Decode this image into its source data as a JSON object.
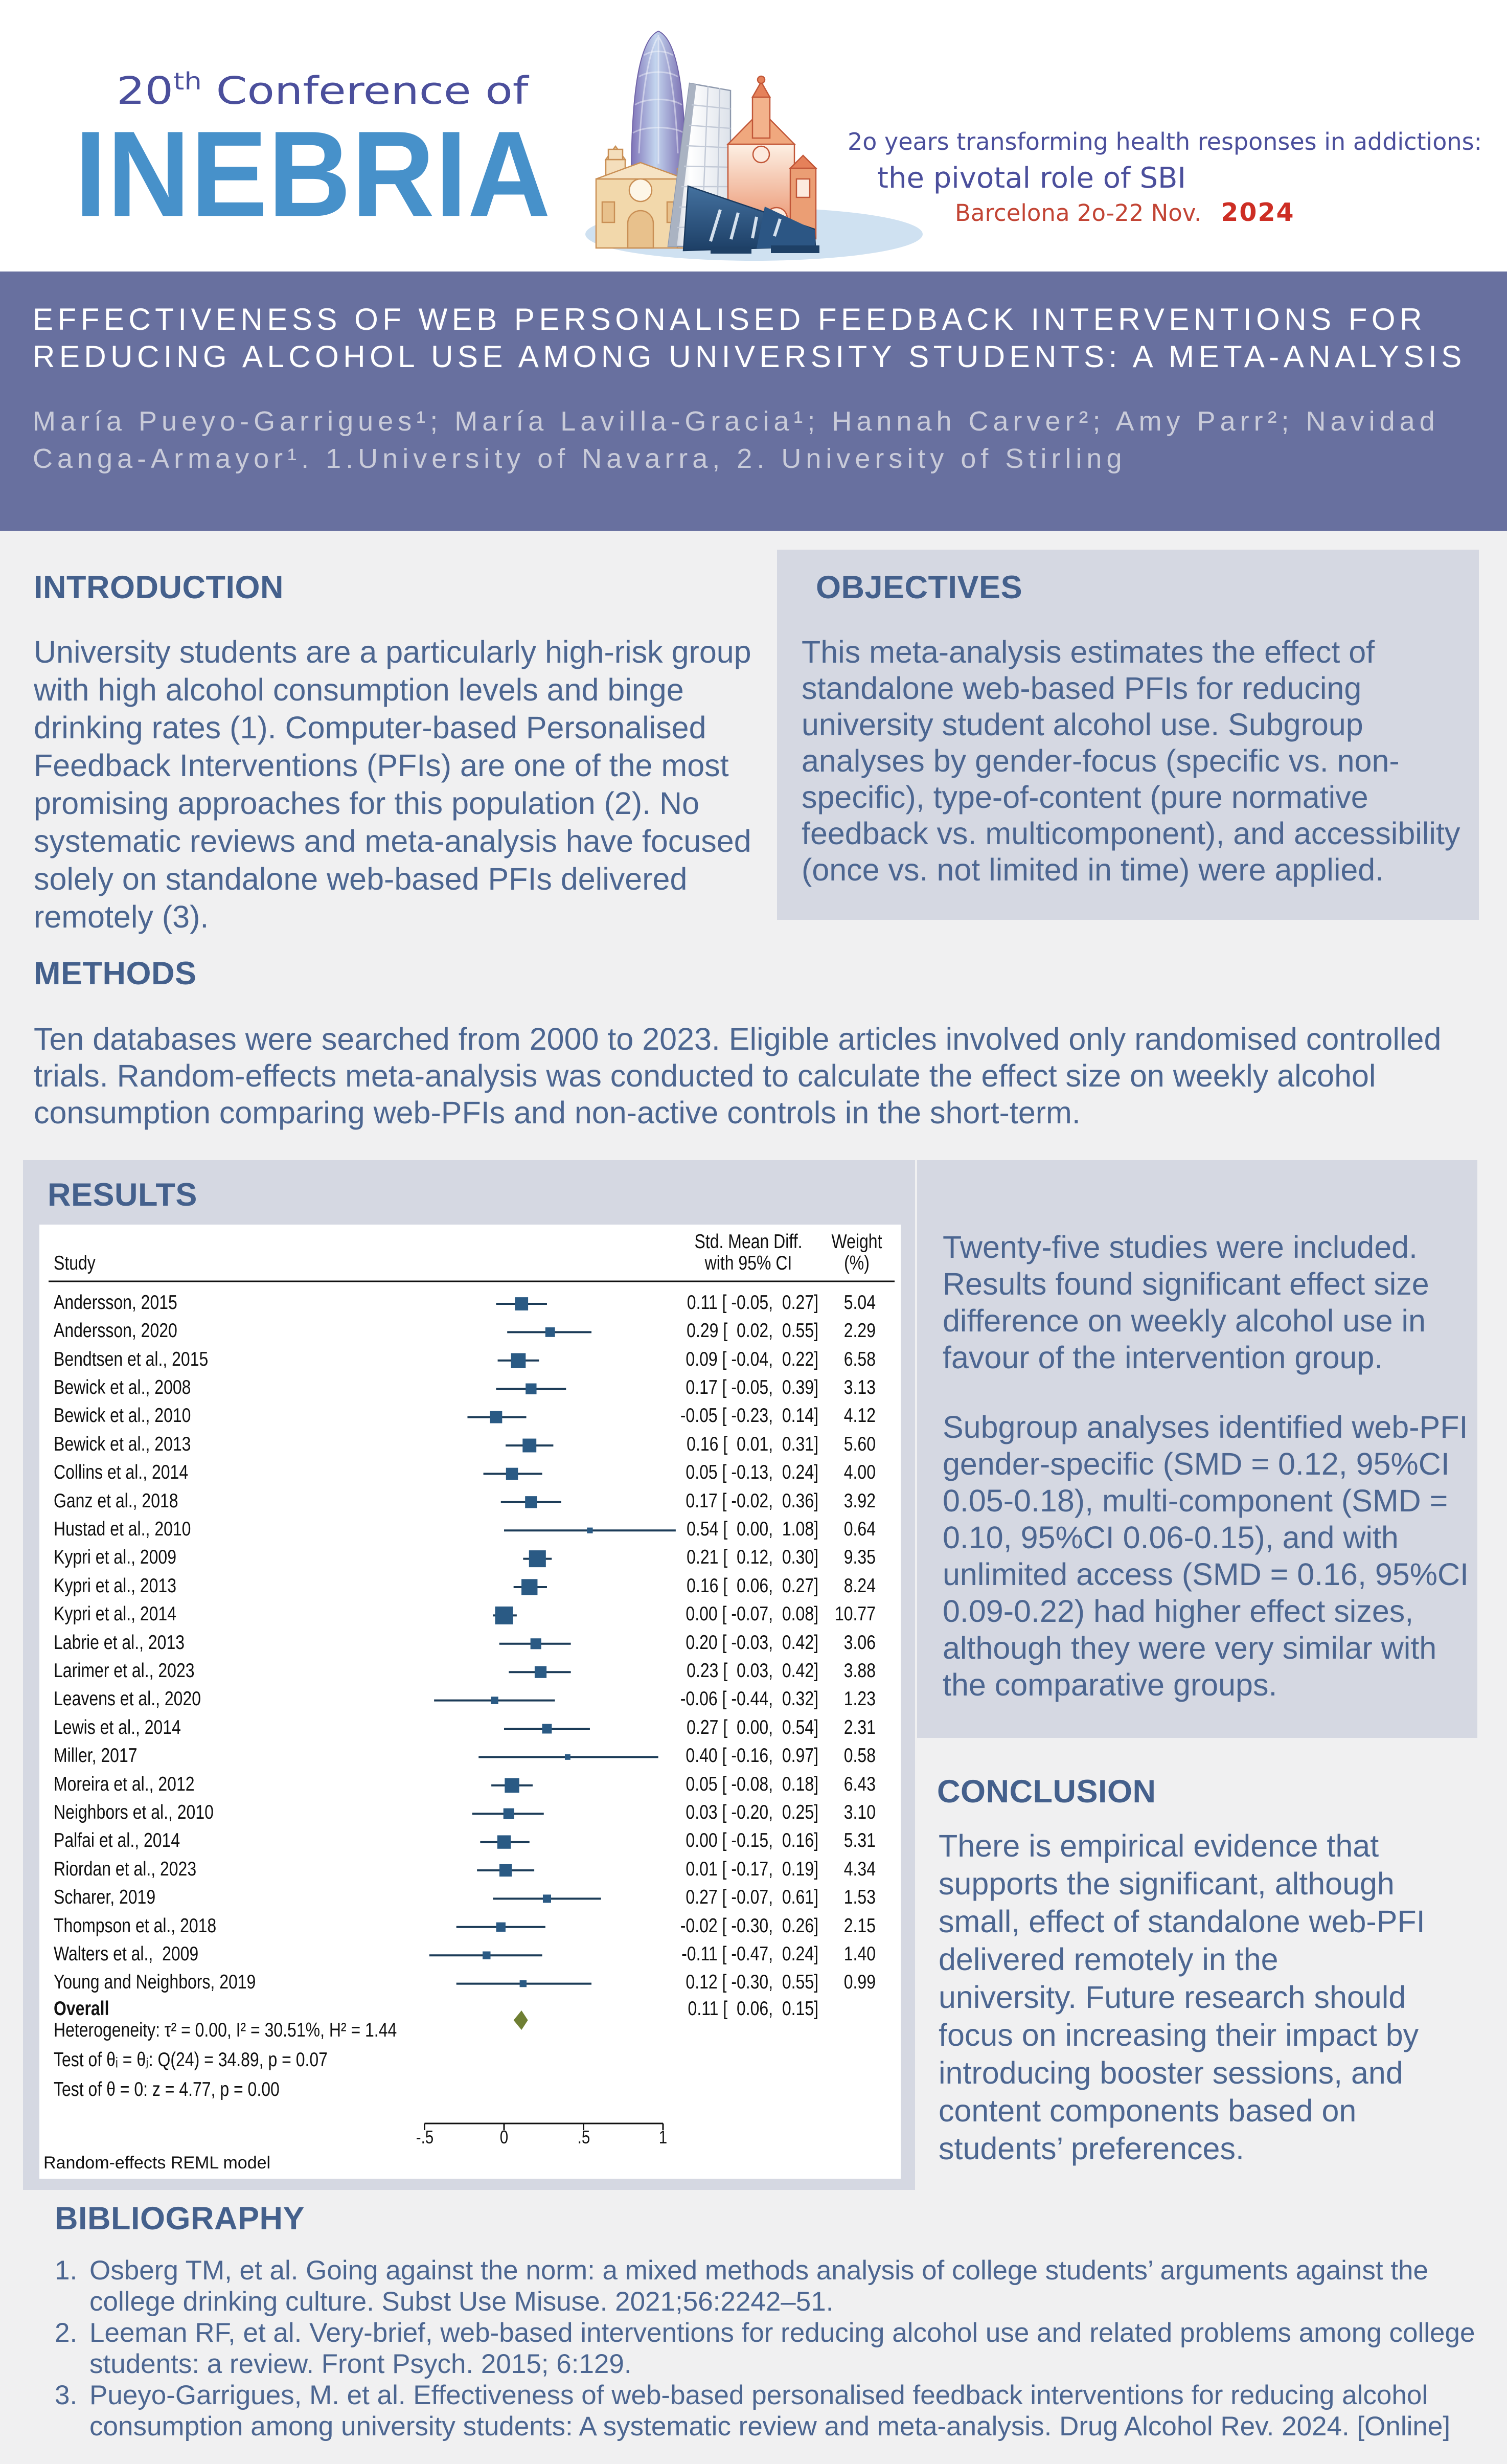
{
  "header": {
    "logo": {
      "number": "20",
      "suffix": "th",
      "rest": " Conference of",
      "name": "INEBRIA"
    },
    "tagline_line1": "2o years transforming health responses in addictions:",
    "tagline_line2": "the pivotal role of SBI",
    "location": "Barcelona 2o-22 Nov.",
    "year": "2024",
    "illustration": "barcelona-landmarks"
  },
  "title_banner": {
    "title": "EFFECTIVENESS OF WEB PERSONALISED FEEDBACK INTERVENTIONS FOR\nREDUCING ALCOHOL USE AMONG UNIVERSITY STUDENTS: A META-ANALYSIS",
    "authors": "María Pueyo-Garrigues¹; María Lavilla-Gracia¹; Hannah Carver²; Amy Parr²; Navidad\nCanga-Armayor¹. 1.University of Navarra, 2. University of Stirling"
  },
  "introduction": {
    "heading": "INTRODUCTION",
    "body": "University students are a particularly high-risk group\nwith high alcohol consumption levels and binge\ndrinking rates (1). Computer-based Personalised\nFeedback Interventions (PFIs) are one of the most\npromising approaches for this population (2). No\nsystematic reviews and meta-analysis have focused\nsolely on standalone web-based PFIs delivered\nremotely (3)."
  },
  "objectives": {
    "heading": "OBJECTIVES",
    "body": "This meta-analysis estimates the effect of\nstandalone web-based PFIs for reducing\nuniversity student alcohol use. Subgroup\nanalyses by gender-focus (specific vs. non-\nspecific), type-of-content (pure normative\nfeedback vs. multicomponent), and accessibility\n(once vs. not limited in time) were applied."
  },
  "methods": {
    "heading": "METHODS",
    "body": "Ten databases were searched from 2000 to 2023. Eligible articles involved only randomised controlled\ntrials. Random-effects meta-analysis was conducted to calculate the effect size on weekly alcohol\nconsumption comparing web-PFIs and non-active controls in the short-term."
  },
  "results": {
    "heading": "RESULTS",
    "commentary_para1": "Twenty-five studies were included.\nResults found significant effect size\ndifference on weekly alcohol use in\nfavour of the intervention group.",
    "commentary_para2": "Subgroup analyses identified web-PFI\ngender-specific (SMD = 0.12, 95%CI\n0.05-0.18), multi-component (SMD =\n0.10, 95%CI 0.06-0.15), and with\nunlimited access (SMD = 0.16, 95%CI\n0.09-0.22) had higher effect sizes,\nalthough they were very similar with\nthe comparative groups."
  },
  "conclusion": {
    "heading": "CONCLUSION",
    "body": "There is empirical evidence that\nsupports the significant, although\nsmall, effect of standalone web-PFI\ndelivered remotely in the\nuniversity. Future research should\nfocus on increasing their impact by\nintroducing booster sessions, and\ncontent components based on\nstudents’ preferences."
  },
  "bibliography": {
    "heading": "BIBLIOGRAPHY",
    "items": [
      {
        "num": "1.",
        "text": "Osberg TM, et al. Going against the norm: a mixed methods analysis of college students’ arguments against the\ncollege drinking culture. Subst Use Misuse. 2021;56:2242–51."
      },
      {
        "num": "2.",
        "text": "Leeman RF, et al. Very-brief, web-based interventions for reducing alcohol use and related problems among college\nstudents: a review. Front Psych. 2015; 6:129."
      },
      {
        "num": "3.",
        "text": "Pueyo-Garrigues, M. et al. Effectiveness of web-based personalised feedback interventions for reducing alcohol\nconsumption among university students: A systematic review and meta-analysis. Drug Alcohol Rev. 2024. [Online]"
      }
    ]
  },
  "chart_data": {
    "type": "forest",
    "title": "Random-effects meta-analysis of standalone web-based PFIs on weekly alcohol consumption",
    "col_study": "Study",
    "col_effect_line1": "Std. Mean Diff.",
    "col_effect_line2": "with 95% CI",
    "col_weight_line1": "Weight",
    "col_weight_line2": "(%)",
    "xlabel": "",
    "axis": {
      "ticks": [
        -0.5,
        0,
        0.5,
        1
      ],
      "tick_labels": [
        "-.5",
        "0",
        ".5",
        "1"
      ]
    },
    "rows": [
      {
        "study": "Andersson, 2015",
        "est": 0.11,
        "lo": -0.05,
        "hi": 0.27,
        "est_label": "0.11 [ -0.05,  0.27]",
        "weight": 5.04,
        "weight_label": "5.04"
      },
      {
        "study": "Andersson, 2020",
        "est": 0.29,
        "lo": 0.02,
        "hi": 0.55,
        "est_label": "0.29 [  0.02,  0.55]",
        "weight": 2.29,
        "weight_label": "2.29"
      },
      {
        "study": "Bendtsen et al., 2015",
        "est": 0.09,
        "lo": -0.04,
        "hi": 0.22,
        "est_label": "0.09 [ -0.04,  0.22]",
        "weight": 6.58,
        "weight_label": "6.58"
      },
      {
        "study": "Bewick et al., 2008",
        "est": 0.17,
        "lo": -0.05,
        "hi": 0.39,
        "est_label": "0.17 [ -0.05,  0.39]",
        "weight": 3.13,
        "weight_label": "3.13"
      },
      {
        "study": "Bewick et al., 2010",
        "est": -0.05,
        "lo": -0.23,
        "hi": 0.14,
        "est_label": "-0.05 [ -0.23,  0.14]",
        "weight": 4.12,
        "weight_label": "4.12"
      },
      {
        "study": "Bewick et al., 2013",
        "est": 0.16,
        "lo": 0.01,
        "hi": 0.31,
        "est_label": "0.16 [  0.01,  0.31]",
        "weight": 5.6,
        "weight_label": "5.60"
      },
      {
        "study": "Collins et al., 2014",
        "est": 0.05,
        "lo": -0.13,
        "hi": 0.24,
        "est_label": "0.05 [ -0.13,  0.24]",
        "weight": 4.0,
        "weight_label": "4.00"
      },
      {
        "study": "Ganz et al., 2018",
        "est": 0.17,
        "lo": -0.02,
        "hi": 0.36,
        "est_label": "0.17 [ -0.02,  0.36]",
        "weight": 3.92,
        "weight_label": "3.92"
      },
      {
        "study": "Hustad et al., 2010",
        "est": 0.54,
        "lo": 0.0,
        "hi": 1.08,
        "est_label": "0.54 [  0.00,  1.08]",
        "weight": 0.64,
        "weight_label": "0.64"
      },
      {
        "study": "Kypri et al., 2009",
        "est": 0.21,
        "lo": 0.12,
        "hi": 0.3,
        "est_label": "0.21 [  0.12,  0.30]",
        "weight": 9.35,
        "weight_label": "9.35"
      },
      {
        "study": "Kypri et al., 2013",
        "est": 0.16,
        "lo": 0.06,
        "hi": 0.27,
        "est_label": "0.16 [  0.06,  0.27]",
        "weight": 8.24,
        "weight_label": "8.24"
      },
      {
        "study": "Kypri et al., 2014",
        "est": 0.0,
        "lo": -0.07,
        "hi": 0.08,
        "est_label": "0.00 [ -0.07,  0.08]",
        "weight": 10.77,
        "weight_label": "10.77"
      },
      {
        "study": "Labrie et al., 2013",
        "est": 0.2,
        "lo": -0.03,
        "hi": 0.42,
        "est_label": "0.20 [ -0.03,  0.42]",
        "weight": 3.06,
        "weight_label": "3.06"
      },
      {
        "study": "Larimer et al., 2023",
        "est": 0.23,
        "lo": 0.03,
        "hi": 0.42,
        "est_label": "0.23 [  0.03,  0.42]",
        "weight": 3.88,
        "weight_label": "3.88"
      },
      {
        "study": "Leavens et al., 2020",
        "est": -0.06,
        "lo": -0.44,
        "hi": 0.32,
        "est_label": "-0.06 [ -0.44,  0.32]",
        "weight": 1.23,
        "weight_label": "1.23"
      },
      {
        "study": "Lewis et al., 2014",
        "est": 0.27,
        "lo": 0.0,
        "hi": 0.54,
        "est_label": "0.27 [  0.00,  0.54]",
        "weight": 2.31,
        "weight_label": "2.31"
      },
      {
        "study": "Miller, 2017",
        "est": 0.4,
        "lo": -0.16,
        "hi": 0.97,
        "est_label": "0.40 [ -0.16,  0.97]",
        "weight": 0.58,
        "weight_label": "0.58"
      },
      {
        "study": "Moreira et al., 2012",
        "est": 0.05,
        "lo": -0.08,
        "hi": 0.18,
        "est_label": "0.05 [ -0.08,  0.18]",
        "weight": 6.43,
        "weight_label": "6.43"
      },
      {
        "study": "Neighbors et al., 2010",
        "est": 0.03,
        "lo": -0.2,
        "hi": 0.25,
        "est_label": "0.03 [ -0.20,  0.25]",
        "weight": 3.1,
        "weight_label": "3.10"
      },
      {
        "study": "Palfai et al., 2014",
        "est": 0.0,
        "lo": -0.15,
        "hi": 0.16,
        "est_label": "0.00 [ -0.15,  0.16]",
        "weight": 5.31,
        "weight_label": "5.31"
      },
      {
        "study": "Riordan et al., 2023",
        "est": 0.01,
        "lo": -0.17,
        "hi": 0.19,
        "est_label": "0.01 [ -0.17,  0.19]",
        "weight": 4.34,
        "weight_label": "4.34"
      },
      {
        "study": "Scharer, 2019",
        "est": 0.27,
        "lo": -0.07,
        "hi": 0.61,
        "est_label": "0.27 [ -0.07,  0.61]",
        "weight": 1.53,
        "weight_label": "1.53"
      },
      {
        "study": "Thompson et al., 2018",
        "est": -0.02,
        "lo": -0.3,
        "hi": 0.26,
        "est_label": "-0.02 [ -0.30,  0.26]",
        "weight": 2.15,
        "weight_label": "2.15"
      },
      {
        "study": "Walters et al.,  2009",
        "est": -0.11,
        "lo": -0.47,
        "hi": 0.24,
        "est_label": "-0.11 [ -0.47,  0.24]",
        "weight": 1.4,
        "weight_label": "1.40"
      },
      {
        "study": "Young and Neighbors, 2019",
        "est": 0.12,
        "lo": -0.3,
        "hi": 0.55,
        "est_label": "0.12 [ -0.30,  0.55]",
        "weight": 0.99,
        "weight_label": "0.99"
      }
    ],
    "overall": {
      "label": "Overall",
      "est": 0.11,
      "lo": 0.06,
      "hi": 0.15,
      "est_label": "0.11 [  0.06,  0.15]"
    },
    "footnotes": [
      "Heterogeneity: τ² = 0.00, I² = 30.51%, H² = 1.44",
      "Test of θᵢ = θⱼ: Q(24) = 34.89, p = 0.07",
      "Test of θ = 0: z = 4.77, p = 0.00"
    ],
    "model_note": "Random-effects REML model",
    "colors": {
      "square": "#2a5a84",
      "ci_line": "#1c3c58",
      "diamond": "#6f7f33",
      "text": "#111111"
    }
  }
}
